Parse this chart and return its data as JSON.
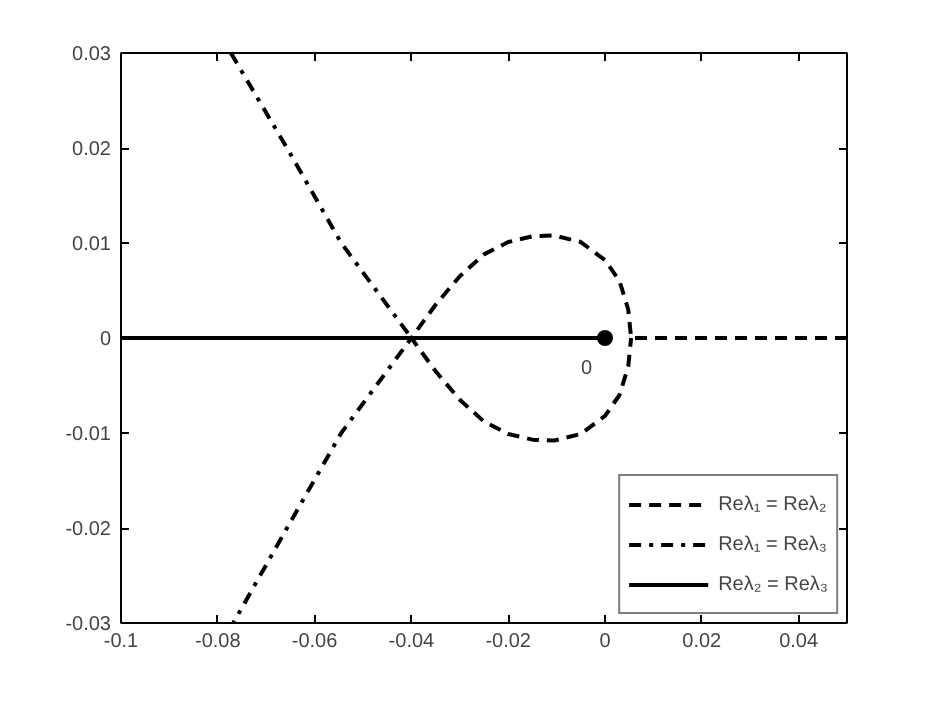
{
  "chart_data": {
    "type": "line",
    "xlim": [
      -0.1,
      0.05
    ],
    "ylim": [
      -0.03,
      0.03
    ],
    "xticks": [
      -0.1,
      -0.08,
      -0.06,
      -0.04,
      -0.02,
      0,
      0.02,
      0.04
    ],
    "yticks": [
      -0.03,
      -0.02,
      -0.01,
      0,
      0.01,
      0.02,
      0.03
    ],
    "grid": false,
    "legend": "bottom right",
    "series": [
      {
        "name": "Reλ₁ = Reλ₂",
        "color": "#000000",
        "line_style": "dashed",
        "x": [
          0.05,
          0.0054,
          0.0048,
          0.003,
          0,
          -0.005,
          -0.0105,
          -0.015,
          -0.02,
          -0.025,
          -0.03,
          -0.035,
          -0.04,
          -0.035,
          -0.03,
          -0.025,
          -0.02,
          -0.015,
          -0.0105,
          -0.005,
          0,
          0.003,
          0.0048,
          0.0054
        ],
        "values": [
          0,
          0,
          0.003,
          0.006,
          0.0082,
          0.0101,
          0.0108,
          0.0107,
          0.0101,
          0.0088,
          0.0065,
          0.0035,
          0,
          -0.0035,
          -0.0065,
          -0.0088,
          -0.0101,
          -0.0107,
          -0.0108,
          -0.0101,
          -0.0082,
          -0.006,
          -0.003,
          0
        ]
      },
      {
        "name": "Reλ₁ = Reλ₃",
        "color": "#000000",
        "line_style": "dashdot",
        "x": [
          -0.0773,
          -0.0657,
          -0.0545,
          -0.04,
          -0.0545,
          -0.0657,
          -0.0768
        ],
        "values": [
          0.03,
          0.02,
          0.01,
          0,
          -0.01,
          -0.02,
          -0.03
        ]
      },
      {
        "name": "Reλ₂ = Reλ₃",
        "color": "#000000",
        "line_style": "solid",
        "x": [
          -0.1,
          0
        ],
        "values": [
          0,
          0
        ]
      },
      {
        "type": "scatter",
        "marker": "circle",
        "color": "#000000",
        "x": [
          0
        ],
        "values": [
          0
        ]
      }
    ],
    "annotations": [
      {
        "text": "0",
        "x": 0,
        "y": 0
      }
    ]
  }
}
